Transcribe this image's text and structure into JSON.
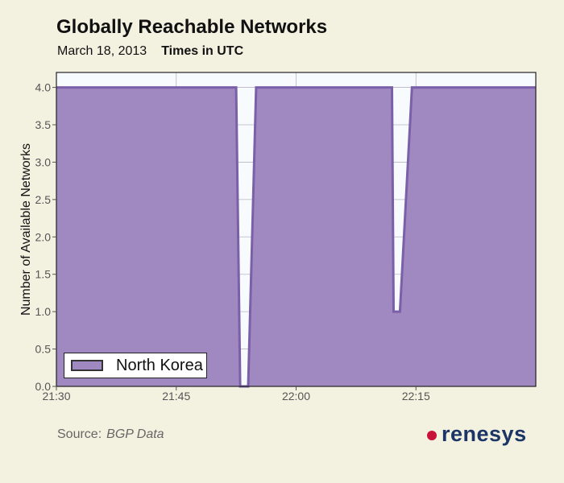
{
  "colors": {
    "series_fill": "#a088c0",
    "series_line": "#7a60a8",
    "plot_bg": "#f8fbfd",
    "grid": "#b9b4c6",
    "brand_dot": "#c8123a",
    "brand_text": "#1b3566"
  },
  "header": {
    "title": "Globally Reachable Networks",
    "date": "March 18, 2013",
    "timezone_note": "Times in UTC"
  },
  "footer": {
    "source_label": "Source:",
    "source_value": "BGP Data",
    "brand": "renesys"
  },
  "chart_data": {
    "type": "area",
    "title": "Globally Reachable Networks",
    "ylabel": "Number of Available Networks",
    "xlabel": "",
    "x_ticks": [
      "21:30",
      "21:45",
      "22:00",
      "22:15"
    ],
    "y_ticks": [
      "0.0",
      "0.5",
      "1.0",
      "1.5",
      "2.0",
      "2.5",
      "3.0",
      "3.5",
      "4.0"
    ],
    "xlim": [
      "21:30",
      "22:30"
    ],
    "ylim": [
      0,
      4.2
    ],
    "grid": true,
    "legend_position": "bottom-left",
    "series": [
      {
        "name": "North Korea",
        "points": [
          [
            "21:30",
            4.0
          ],
          [
            "21:52.5",
            4.0
          ],
          [
            "21:53",
            0.0
          ],
          [
            "21:54",
            0.0
          ],
          [
            "21:55",
            4.0
          ],
          [
            "22:12",
            4.0
          ],
          [
            "22:12.2",
            1.0
          ],
          [
            "22:13",
            1.0
          ],
          [
            "22:14.5",
            4.0
          ],
          [
            "22:30",
            4.0
          ]
        ]
      }
    ]
  }
}
